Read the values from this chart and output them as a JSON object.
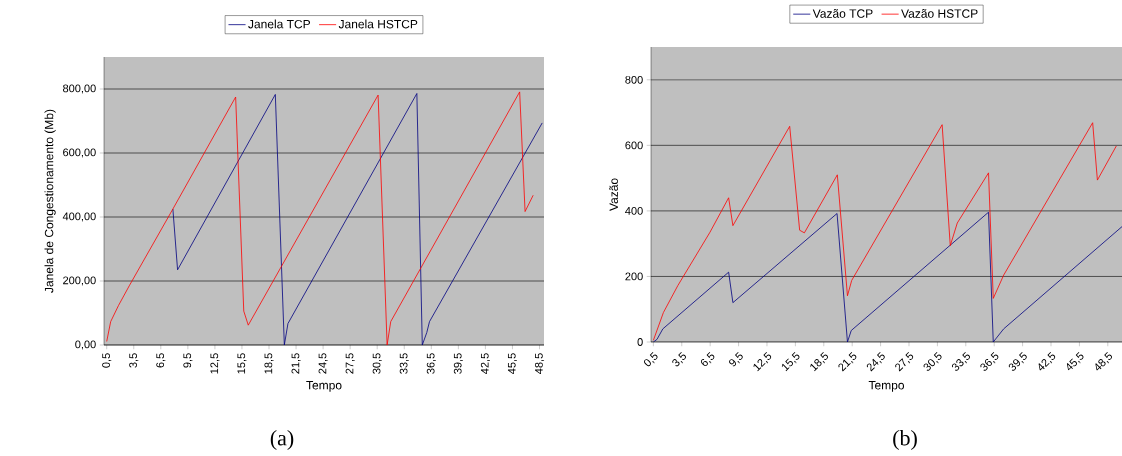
{
  "chart_data": [
    {
      "type": "line",
      "xlabel": "Tempo",
      "ylabel": "Janela de Congestionamento (Mb)",
      "annotations": [
        "(a)"
      ],
      "legend": "top",
      "grid": "y",
      "marker": "none",
      "line_style": "solid",
      "xlim": [
        0.2,
        49.0
      ],
      "ylim": [
        0,
        900
      ],
      "xticks": [
        {
          "value": 0.5,
          "label": "0,5"
        },
        {
          "value": 3.5,
          "label": "3,5"
        },
        {
          "value": 6.5,
          "label": "6,5"
        },
        {
          "value": 9.5,
          "label": "9,5"
        },
        {
          "value": 12.5,
          "label": "12,5"
        },
        {
          "value": 15.5,
          "label": "15,5"
        },
        {
          "value": 18.5,
          "label": "18,5"
        },
        {
          "value": 21.5,
          "label": "21,5"
        },
        {
          "value": 24.5,
          "label": "24,5"
        },
        {
          "value": 27.5,
          "label": "27,5"
        },
        {
          "value": 30.5,
          "label": "30,5"
        },
        {
          "value": 33.5,
          "label": "33,5"
        },
        {
          "value": 36.5,
          "label": "36,5"
        },
        {
          "value": 39.5,
          "label": "39,5"
        },
        {
          "value": 42.5,
          "label": "42,5"
        },
        {
          "value": 45.5,
          "label": "45,5"
        },
        {
          "value": 48.5,
          "label": "48,5"
        }
      ],
      "yticks": [
        {
          "value": 0,
          "label": "0,00"
        },
        {
          "value": 200,
          "label": "200,00"
        },
        {
          "value": 400,
          "label": "400,00"
        },
        {
          "value": 600,
          "label": "600,00"
        },
        {
          "value": 800,
          "label": "800,00"
        }
      ],
      "series": [
        {
          "name": "Janela TCP",
          "color": "#000080",
          "x": [
            7.84,
            8.36,
            19.2,
            20.2,
            20.6,
            34.9,
            35.5,
            36.0,
            36.3,
            48.8
          ],
          "values": [
            425,
            235,
            783,
            0,
            67,
            786,
            0,
            39,
            73,
            694
          ]
        },
        {
          "name": "Janela HSTCP",
          "color": "#ff0000",
          "x": [
            0.5,
            0.94,
            1.8,
            3.0,
            7.84,
            14.8,
            15.7,
            16.2,
            30.6,
            31.6,
            32.0,
            46.3,
            46.9,
            47.8
          ],
          "values": [
            11,
            73,
            123,
            185,
            425,
            775,
            106,
            62,
            781,
            0,
            73,
            791,
            417,
            468
          ]
        }
      ]
    },
    {
      "type": "line",
      "xlabel": "Tempo",
      "ylabel": "Vazão",
      "annotations": [
        "(b)"
      ],
      "legend": "top",
      "grid": "y",
      "marker": "none",
      "line_style": "solid",
      "xlim": [
        0.25,
        50.0
      ],
      "ylim": [
        0,
        900
      ],
      "xticks": [
        {
          "value": 0.5,
          "label": "0,5"
        },
        {
          "value": 3.5,
          "label": "3,5"
        },
        {
          "value": 6.5,
          "label": "6,5"
        },
        {
          "value": 9.5,
          "label": "9,5"
        },
        {
          "value": 12.5,
          "label": "12,5"
        },
        {
          "value": 15.5,
          "label": "15,5"
        },
        {
          "value": 18.5,
          "label": "18,5"
        },
        {
          "value": 21.5,
          "label": "21,5"
        },
        {
          "value": 24.5,
          "label": "24,5"
        },
        {
          "value": 27.5,
          "label": "27,5"
        },
        {
          "value": 30.5,
          "label": "30,5"
        },
        {
          "value": 33.5,
          "label": "33,5"
        },
        {
          "value": 36.5,
          "label": "36,5"
        },
        {
          "value": 39.5,
          "label": "39,5"
        },
        {
          "value": 42.5,
          "label": "42,5"
        },
        {
          "value": 45.5,
          "label": "45,5"
        },
        {
          "value": 48.5,
          "label": "48,5"
        }
      ],
      "yticks": [
        0,
        200,
        400,
        600,
        800
      ],
      "series": [
        {
          "name": "Vazão TCP",
          "color": "#000080",
          "x": [
            0.5,
            0.88,
            1.5,
            8.45,
            8.9,
            19.9,
            21.0,
            21.4,
            35.9,
            36.4,
            37.5,
            50.0
          ],
          "values": [
            0,
            8,
            40,
            213,
            120,
            392,
            0,
            35,
            396,
            0,
            40,
            352
          ]
        },
        {
          "name": "Vazão HSTCP",
          "color": "#ff0000",
          "x": [
            0.5,
            1.56,
            3.08,
            6.48,
            8.45,
            8.9,
            14.9,
            15.95,
            16.45,
            19.93,
            21.0,
            21.45,
            31.0,
            31.86,
            32.6,
            35.9,
            36.4,
            37.5,
            46.9,
            47.4,
            49.4
          ],
          "values": [
            5,
            90,
            172,
            335,
            440,
            355,
            658,
            341,
            333,
            510,
            141,
            188,
            663,
            294,
            363,
            516,
            133,
            204,
            669,
            494,
            598
          ]
        }
      ]
    }
  ]
}
